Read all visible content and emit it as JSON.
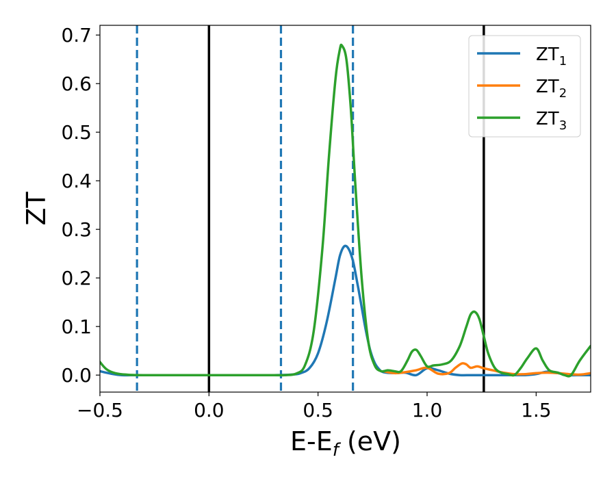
{
  "chart_data": {
    "type": "line",
    "xlabel": "E-E_f (eV)",
    "ylabel": "ZT",
    "xlim": [
      -0.5,
      1.75
    ],
    "ylim": [
      -0.035,
      0.72
    ],
    "xticks": [
      -0.5,
      0.0,
      0.5,
      1.0,
      1.5
    ],
    "xtick_labels": [
      "−0.5",
      "0.0",
      "0.5",
      "1.0",
      "1.5"
    ],
    "yticks": [
      0.0,
      0.1,
      0.2,
      0.3,
      0.4,
      0.5,
      0.6,
      0.7
    ],
    "ytick_labels": [
      "0.0",
      "0.1",
      "0.2",
      "0.3",
      "0.4",
      "0.5",
      "0.6",
      "0.7"
    ],
    "grid": false,
    "legend_position": "top-right",
    "series": [
      {
        "name": "ZT1",
        "label_main": "ZT",
        "label_sub": "1",
        "color": "#1f77b4",
        "x": [
          -0.5,
          -0.45,
          -0.4,
          -0.3,
          0.0,
          0.3,
          0.38,
          0.42,
          0.46,
          0.5,
          0.54,
          0.58,
          0.6,
          0.62,
          0.64,
          0.66,
          0.68,
          0.7,
          0.72,
          0.74,
          0.76,
          0.78,
          0.8,
          0.85,
          0.9,
          0.95,
          1.0,
          1.05,
          1.1,
          1.15,
          1.2,
          1.25,
          1.3,
          1.35,
          1.4,
          1.45,
          1.5,
          1.55,
          1.6,
          1.65,
          1.7,
          1.75
        ],
        "y": [
          0.008,
          0.003,
          0.0,
          0.0,
          0.0,
          0.0,
          0.001,
          0.004,
          0.014,
          0.045,
          0.11,
          0.2,
          0.245,
          0.265,
          0.26,
          0.235,
          0.19,
          0.14,
          0.09,
          0.05,
          0.025,
          0.012,
          0.006,
          0.004,
          0.005,
          0.0,
          0.014,
          0.01,
          0.003,
          0.0,
          0.0,
          0.0,
          0.0,
          0.0,
          0.0,
          0.0,
          0.002,
          0.007,
          0.004,
          0.0,
          0.0,
          0.0
        ]
      },
      {
        "name": "ZT2",
        "label_main": "ZT",
        "label_sub": "2",
        "color": "#ff7f0e",
        "x": [
          0.8,
          0.85,
          0.9,
          0.95,
          1.0,
          1.05,
          1.1,
          1.13,
          1.16,
          1.18,
          1.2,
          1.23,
          1.26,
          1.3,
          1.35,
          1.4,
          1.45,
          1.5,
          1.55,
          1.6,
          1.65,
          1.7,
          1.75
        ],
        "y": [
          0.008,
          0.004,
          0.006,
          0.01,
          0.015,
          0.003,
          0.004,
          0.015,
          0.024,
          0.022,
          0.015,
          0.018,
          0.014,
          0.01,
          0.005,
          0.002,
          0.002,
          0.004,
          0.005,
          0.004,
          0.002,
          0.001,
          0.004
        ]
      },
      {
        "name": "ZT3",
        "label_main": "ZT",
        "label_sub": "3",
        "color": "#2ca02c",
        "x": [
          -0.5,
          -0.47,
          -0.43,
          -0.38,
          -0.3,
          0.0,
          0.3,
          0.35,
          0.4,
          0.44,
          0.48,
          0.52,
          0.55,
          0.58,
          0.6,
          0.61,
          0.63,
          0.65,
          0.67,
          0.7,
          0.73,
          0.76,
          0.79,
          0.82,
          0.85,
          0.88,
          0.91,
          0.93,
          0.95,
          0.97,
          1.0,
          1.03,
          1.07,
          1.11,
          1.15,
          1.18,
          1.2,
          1.22,
          1.24,
          1.26,
          1.28,
          1.31,
          1.34,
          1.37,
          1.4,
          1.43,
          1.46,
          1.5,
          1.53,
          1.56,
          1.6,
          1.63,
          1.66,
          1.7,
          1.75
        ],
        "y": [
          0.027,
          0.012,
          0.004,
          0.001,
          0.0,
          0.0,
          0.0,
          0.0,
          0.003,
          0.02,
          0.09,
          0.26,
          0.45,
          0.61,
          0.67,
          0.678,
          0.65,
          0.55,
          0.4,
          0.2,
          0.07,
          0.02,
          0.008,
          0.01,
          0.008,
          0.008,
          0.03,
          0.048,
          0.052,
          0.04,
          0.018,
          0.02,
          0.022,
          0.03,
          0.06,
          0.1,
          0.125,
          0.13,
          0.115,
          0.08,
          0.045,
          0.015,
          0.005,
          0.002,
          0.0,
          0.015,
          0.035,
          0.055,
          0.03,
          0.01,
          0.005,
          0.0,
          0.0,
          0.03,
          0.06
        ]
      }
    ],
    "vlines": [
      {
        "x": 0.0,
        "style": "solid",
        "color": "#000000"
      },
      {
        "x": 1.26,
        "style": "solid",
        "color": "#000000"
      },
      {
        "x": -0.33,
        "style": "dashed",
        "color": "#1f77b4"
      },
      {
        "x": 0.33,
        "style": "dashed",
        "color": "#1f77b4"
      },
      {
        "x": 0.66,
        "style": "dashed",
        "color": "#1f77b4"
      }
    ]
  }
}
